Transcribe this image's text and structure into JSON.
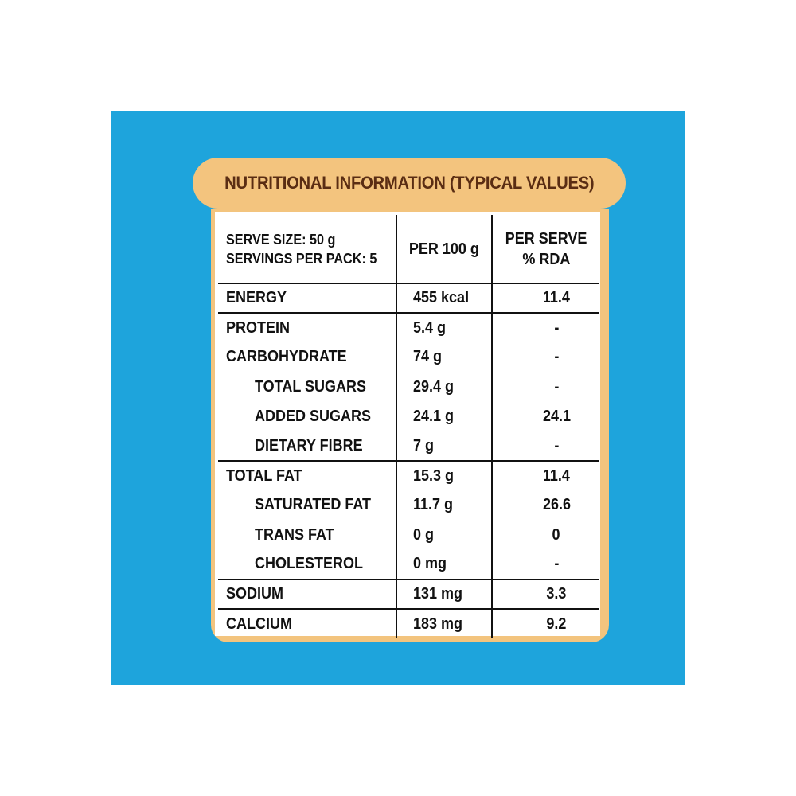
{
  "title": "NUTRITIONAL INFORMATION (TYPICAL VALUES)",
  "colors": {
    "background": "#ffffff",
    "panel": "#1ea4dc",
    "label_accent": "#f3c47e",
    "title_text": "#5a2d13",
    "table_text": "#111111"
  },
  "header": {
    "serve_size": "SERVE SIZE: 50 g",
    "servings_per_pack": "SERVINGS PER PACK: 5",
    "per_100g": "PER 100 g",
    "per_serve_line1": "PER SERVE",
    "per_serve_line2": "% RDA"
  },
  "rows": [
    {
      "name": "ENERGY",
      "per100": "455 kcal",
      "rda": "11.4"
    },
    {
      "name": "PROTEIN",
      "per100": "5.4 g",
      "rda": "-"
    },
    {
      "name": "CARBOHYDRATE",
      "per100": "74 g",
      "rda": "-"
    },
    {
      "name": "TOTAL SUGARS",
      "per100": "29.4 g",
      "rda": "-"
    },
    {
      "name": "ADDED SUGARS",
      "per100": "24.1 g",
      "rda": "24.1"
    },
    {
      "name": "DIETARY FIBRE",
      "per100": "7 g",
      "rda": "-"
    },
    {
      "name": "TOTAL FAT",
      "per100": "15.3 g",
      "rda": "11.4"
    },
    {
      "name": "SATURATED FAT",
      "per100": "11.7 g",
      "rda": "26.6"
    },
    {
      "name": "TRANS FAT",
      "per100": "0 g",
      "rda": "0"
    },
    {
      "name": "CHOLESTEROL",
      "per100": "0 mg",
      "rda": "-"
    },
    {
      "name": "SODIUM",
      "per100": "131 mg",
      "rda": "3.3"
    },
    {
      "name": "CALCIUM",
      "per100": "183 mg",
      "rda": "9.2"
    }
  ]
}
